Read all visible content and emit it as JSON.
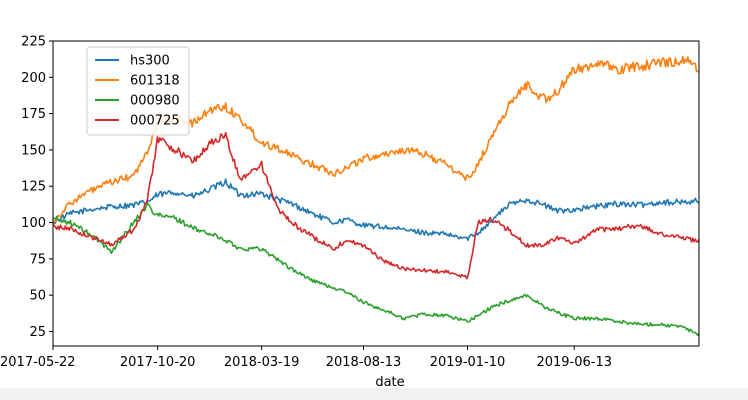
{
  "chart_data": {
    "type": "line",
    "title": "",
    "xlabel": "date",
    "ylabel": "",
    "ylim": [
      15,
      225
    ],
    "yticks": [
      25,
      50,
      75,
      100,
      125,
      150,
      175,
      200,
      225
    ],
    "x_tick_labels": [
      "2017-05-22",
      "2017-10-20",
      "2018-03-19",
      "2018-08-13",
      "2019-01-10",
      "2019-06-13"
    ],
    "legend_position": "top-left",
    "grid": false,
    "x_points": [
      "2017-05-22",
      "2017-06-15",
      "2017-07-15",
      "2017-08-15",
      "2017-09-15",
      "2017-10-05",
      "2017-10-20",
      "2017-11-15",
      "2017-12-10",
      "2018-01-05",
      "2018-01-26",
      "2018-02-15",
      "2018-03-19",
      "2018-04-10",
      "2018-05-01",
      "2018-06-01",
      "2018-07-01",
      "2018-07-20",
      "2018-08-13",
      "2018-09-10",
      "2018-10-10",
      "2018-11-10",
      "2018-12-10",
      "2018-12-25",
      "2019-01-10",
      "2019-01-25",
      "2019-02-15",
      "2019-03-10",
      "2019-04-05",
      "2019-05-01",
      "2019-05-20",
      "2019-06-13",
      "2019-07-15",
      "2019-08-15",
      "2019-09-15",
      "2019-10-15",
      "2019-11-15",
      "2019-12-10"
    ],
    "series": [
      {
        "name": "hs300",
        "color": "#1f77b4",
        "values": [
          100,
          106,
          109,
          111,
          112,
          114,
          119,
          121,
          118,
          123,
          128,
          119,
          120,
          116,
          113,
          106,
          100,
          102,
          98,
          97,
          95,
          93,
          92,
          90,
          89,
          93,
          102,
          112,
          116,
          112,
          108,
          109,
          111,
          113,
          112,
          114,
          114,
          115
        ]
      },
      {
        "name": "601318",
        "color": "#ff7f0e",
        "values": [
          100,
          113,
          122,
          128,
          132,
          148,
          170,
          172,
          168,
          178,
          180,
          172,
          155,
          152,
          146,
          140,
          134,
          138,
          144,
          147,
          150,
          147,
          140,
          135,
          130,
          140,
          160,
          180,
          195,
          185,
          190,
          205,
          210,
          205,
          208,
          210,
          212,
          207
        ]
      },
      {
        "name": "000980",
        "color": "#2ca02c",
        "values": [
          103,
          100,
          92,
          80,
          100,
          112,
          105,
          103,
          96,
          92,
          88,
          82,
          82,
          75,
          68,
          60,
          55,
          52,
          45,
          40,
          34,
          37,
          36,
          34,
          32,
          36,
          42,
          46,
          50,
          42,
          38,
          34,
          34,
          32,
          30,
          30,
          28,
          23
        ]
      },
      {
        "name": "000725",
        "color": "#d62728",
        "values": [
          97,
          96,
          90,
          85,
          95,
          115,
          158,
          150,
          142,
          155,
          160,
          130,
          140,
          110,
          100,
          90,
          82,
          88,
          84,
          74,
          68,
          67,
          66,
          64,
          62,
          100,
          102,
          95,
          84,
          85,
          90,
          85,
          95,
          96,
          98,
          92,
          90,
          87
        ]
      }
    ]
  }
}
